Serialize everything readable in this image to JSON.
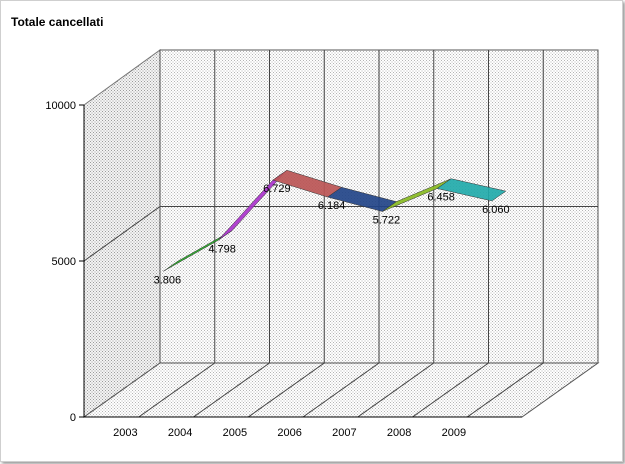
{
  "chart_data": {
    "type": "line",
    "style": "3d-ribbon",
    "title": "Totale cancellati",
    "xlabel": "",
    "ylabel": "",
    "categories": [
      "2003",
      "2004",
      "2005",
      "2006",
      "2007",
      "2008",
      "2009"
    ],
    "series": [
      {
        "values": [
          3806,
          4798,
          6729,
          6184,
          5722,
          6458,
          6060
        ],
        "labels": [
          "3.806",
          "4.798",
          "6.729",
          "6.184",
          "5.722",
          "6.458",
          "6.060"
        ]
      }
    ],
    "ylim": [
      0,
      10000
    ],
    "yticks": [
      0,
      5000,
      10000
    ],
    "grid": true,
    "legend": "none",
    "segment_colors": [
      "#22aa22",
      "#aa33cc",
      "#bb5555",
      "#224488",
      "#88bb22",
      "#22aaaa"
    ],
    "wall_color": "#dcdcdc",
    "side_wall_color": "#c8c8c8",
    "floor_color": "#e6e6e6"
  }
}
